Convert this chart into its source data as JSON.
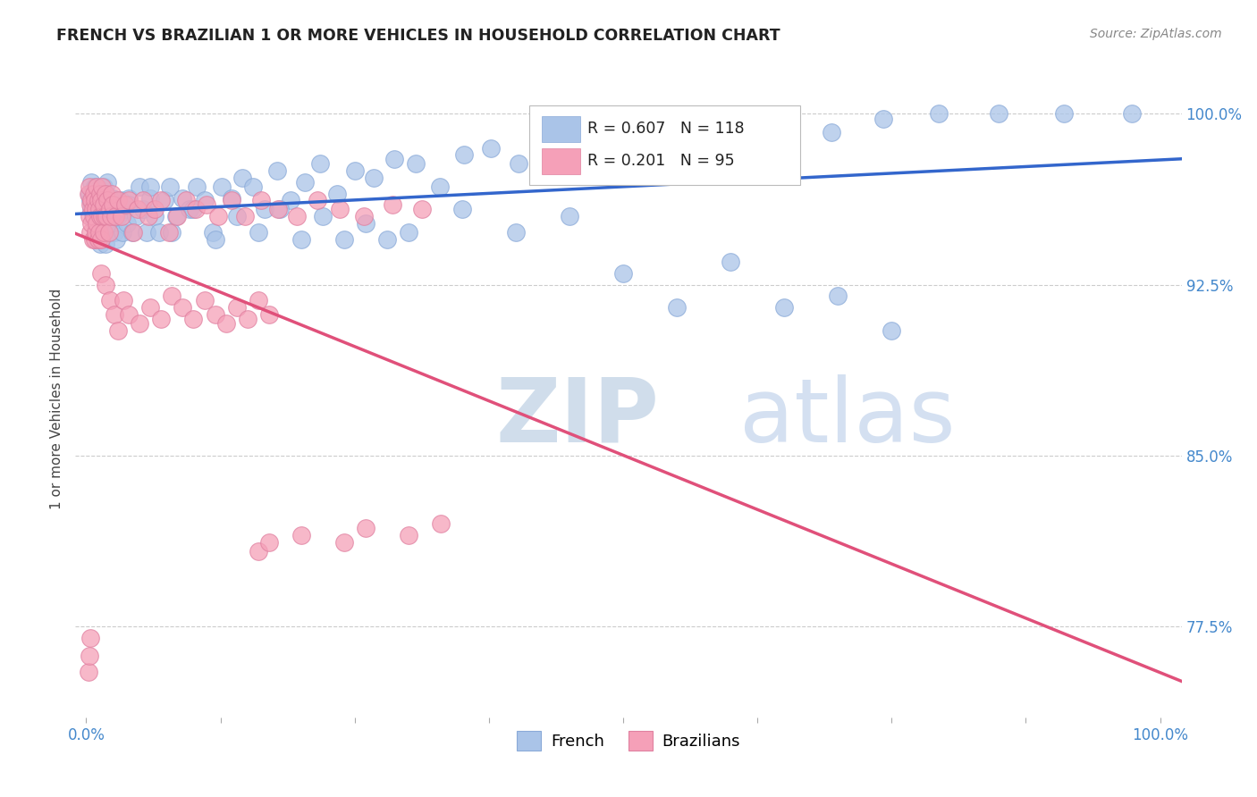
{
  "title": "FRENCH VS BRAZILIAN 1 OR MORE VEHICLES IN HOUSEHOLD CORRELATION CHART",
  "source": "Source: ZipAtlas.com",
  "ylabel": "1 or more Vehicles in Household",
  "ytick_labels": [
    "100.0%",
    "92.5%",
    "85.0%",
    "77.5%"
  ],
  "ytick_values": [
    1.0,
    0.925,
    0.85,
    0.775
  ],
  "xlim": [
    -0.01,
    1.02
  ],
  "ylim": [
    0.735,
    1.015
  ],
  "legend_french": "French",
  "legend_brazilians": "Brazilians",
  "R_french": 0.607,
  "N_french": 118,
  "R_brazilians": 0.201,
  "N_brazilians": 95,
  "color_french": "#aac4e8",
  "color_brazilians": "#f5a0b8",
  "color_line_french": "#3366cc",
  "color_line_brazilians": "#e0507a",
  "color_title": "#222222",
  "color_source": "#888888",
  "color_axis_labels": "#4488cc",
  "watermark_zip": "ZIP",
  "watermark_atlas": "atlas",
  "french_x": [
    0.003,
    0.004,
    0.005,
    0.005,
    0.006,
    0.006,
    0.007,
    0.007,
    0.008,
    0.008,
    0.009,
    0.009,
    0.01,
    0.01,
    0.01,
    0.011,
    0.011,
    0.012,
    0.012,
    0.013,
    0.013,
    0.014,
    0.014,
    0.015,
    0.015,
    0.016,
    0.016,
    0.017,
    0.018,
    0.018,
    0.019,
    0.02,
    0.02,
    0.021,
    0.022,
    0.022,
    0.023,
    0.024,
    0.025,
    0.026,
    0.027,
    0.028,
    0.03,
    0.032,
    0.034,
    0.036,
    0.038,
    0.04,
    0.043,
    0.046,
    0.05,
    0.053,
    0.056,
    0.06,
    0.064,
    0.068,
    0.073,
    0.078,
    0.084,
    0.09,
    0.096,
    0.103,
    0.11,
    0.118,
    0.126,
    0.135,
    0.145,
    0.155,
    0.166,
    0.178,
    0.19,
    0.204,
    0.218,
    0.234,
    0.25,
    0.268,
    0.287,
    0.307,
    0.329,
    0.352,
    0.377,
    0.403,
    0.431,
    0.461,
    0.494,
    0.529,
    0.566,
    0.606,
    0.648,
    0.694,
    0.742,
    0.794,
    0.85,
    0.91,
    0.974,
    0.04,
    0.06,
    0.08,
    0.1,
    0.12,
    0.14,
    0.16,
    0.18,
    0.2,
    0.22,
    0.24,
    0.26,
    0.28,
    0.3,
    0.35,
    0.4,
    0.45,
    0.5,
    0.55,
    0.6,
    0.65,
    0.7,
    0.75
  ],
  "french_y": [
    0.965,
    0.962,
    0.97,
    0.958,
    0.966,
    0.955,
    0.962,
    0.953,
    0.958,
    0.968,
    0.955,
    0.948,
    0.963,
    0.958,
    0.945,
    0.96,
    0.952,
    0.965,
    0.948,
    0.958,
    0.943,
    0.955,
    0.947,
    0.962,
    0.953,
    0.968,
    0.958,
    0.952,
    0.965,
    0.943,
    0.958,
    0.97,
    0.948,
    0.955,
    0.963,
    0.948,
    0.952,
    0.958,
    0.963,
    0.948,
    0.958,
    0.945,
    0.955,
    0.962,
    0.948,
    0.958,
    0.952,
    0.963,
    0.948,
    0.955,
    0.968,
    0.958,
    0.948,
    0.963,
    0.955,
    0.948,
    0.962,
    0.968,
    0.955,
    0.963,
    0.958,
    0.968,
    0.962,
    0.948,
    0.968,
    0.963,
    0.972,
    0.968,
    0.958,
    0.975,
    0.962,
    0.97,
    0.978,
    0.965,
    0.975,
    0.972,
    0.98,
    0.978,
    0.968,
    0.982,
    0.985,
    0.978,
    0.988,
    0.982,
    0.99,
    0.985,
    0.992,
    0.988,
    0.998,
    0.992,
    0.998,
    1.0,
    1.0,
    1.0,
    1.0,
    0.96,
    0.968,
    0.948,
    0.958,
    0.945,
    0.955,
    0.948,
    0.958,
    0.945,
    0.955,
    0.945,
    0.952,
    0.945,
    0.948,
    0.958,
    0.948,
    0.955,
    0.93,
    0.915,
    0.935,
    0.915,
    0.92,
    0.905
  ],
  "braz_x": [
    0.002,
    0.003,
    0.003,
    0.004,
    0.004,
    0.005,
    0.005,
    0.006,
    0.006,
    0.007,
    0.007,
    0.008,
    0.008,
    0.009,
    0.009,
    0.01,
    0.01,
    0.011,
    0.011,
    0.012,
    0.012,
    0.013,
    0.013,
    0.014,
    0.014,
    0.015,
    0.015,
    0.016,
    0.016,
    0.017,
    0.018,
    0.019,
    0.02,
    0.021,
    0.022,
    0.023,
    0.024,
    0.025,
    0.027,
    0.03,
    0.033,
    0.036,
    0.04,
    0.044,
    0.048,
    0.053,
    0.058,
    0.064,
    0.07,
    0.077,
    0.085,
    0.093,
    0.102,
    0.112,
    0.123,
    0.135,
    0.148,
    0.163,
    0.179,
    0.196,
    0.215,
    0.236,
    0.259,
    0.285,
    0.313,
    0.014,
    0.018,
    0.022,
    0.026,
    0.03,
    0.035,
    0.04,
    0.05,
    0.06,
    0.07,
    0.08,
    0.09,
    0.1,
    0.11,
    0.12,
    0.13,
    0.14,
    0.15,
    0.16,
    0.17,
    0.002,
    0.003,
    0.004,
    0.16,
    0.17,
    0.2,
    0.24,
    0.26,
    0.3,
    0.33
  ],
  "braz_y": [
    0.965,
    0.968,
    0.955,
    0.96,
    0.948,
    0.962,
    0.952,
    0.958,
    0.945,
    0.965,
    0.955,
    0.962,
    0.945,
    0.958,
    0.948,
    0.968,
    0.952,
    0.962,
    0.945,
    0.958,
    0.948,
    0.965,
    0.955,
    0.962,
    0.945,
    0.968,
    0.955,
    0.96,
    0.948,
    0.955,
    0.965,
    0.955,
    0.962,
    0.948,
    0.958,
    0.955,
    0.965,
    0.96,
    0.955,
    0.962,
    0.955,
    0.96,
    0.962,
    0.948,
    0.958,
    0.962,
    0.955,
    0.958,
    0.962,
    0.948,
    0.955,
    0.962,
    0.958,
    0.96,
    0.955,
    0.962,
    0.955,
    0.962,
    0.958,
    0.955,
    0.962,
    0.958,
    0.955,
    0.96,
    0.958,
    0.93,
    0.925,
    0.918,
    0.912,
    0.905,
    0.918,
    0.912,
    0.908,
    0.915,
    0.91,
    0.92,
    0.915,
    0.91,
    0.918,
    0.912,
    0.908,
    0.915,
    0.91,
    0.918,
    0.912,
    0.755,
    0.762,
    0.77,
    0.808,
    0.812,
    0.815,
    0.812,
    0.818,
    0.815,
    0.82
  ]
}
